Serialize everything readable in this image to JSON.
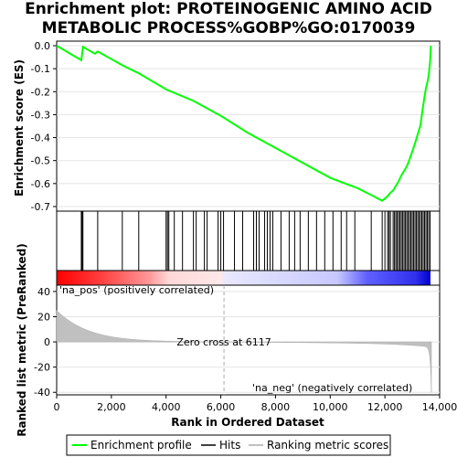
{
  "title_line1": "Enrichment plot: PROTEINOGENIC AMINO ACID",
  "title_line2": "METABOLIC PROCESS%GOBP%GO:0170039",
  "chart_data": {
    "type": "line",
    "es_panel": {
      "ylabel": "Enrichment score (ES)",
      "ylim": [
        -0.72,
        0.02
      ],
      "yticks": [
        "0.0",
        "-0.1",
        "-0.2",
        "-0.3",
        "-0.4",
        "-0.5",
        "-0.6",
        "-0.7"
      ],
      "ytick_values": [
        0.0,
        -0.1,
        -0.2,
        -0.3,
        -0.4,
        -0.5,
        -0.6,
        -0.7
      ],
      "series": [
        {
          "name": "Enrichment profile",
          "color": "#00ff00",
          "x": [
            0,
            900,
            930,
            960,
            1400,
            1500,
            2400,
            3000,
            4000,
            4100,
            5000,
            6000,
            7000,
            8000,
            9000,
            10000,
            11000,
            11500,
            11900,
            12000,
            12100,
            12200,
            12300,
            12400,
            12500,
            12600,
            12700,
            12800,
            12900,
            13000,
            13100,
            13200,
            13300,
            13350,
            13400,
            13450,
            13500,
            13550,
            13600,
            13650,
            13680
          ],
          "y": [
            0.0,
            -0.063,
            -0.035,
            -0.005,
            -0.035,
            -0.025,
            -0.085,
            -0.12,
            -0.19,
            -0.195,
            -0.24,
            -0.305,
            -0.38,
            -0.445,
            -0.51,
            -0.575,
            -0.62,
            -0.65,
            -0.675,
            -0.665,
            -0.655,
            -0.64,
            -0.63,
            -0.61,
            -0.59,
            -0.565,
            -0.545,
            -0.525,
            -0.495,
            -0.46,
            -0.425,
            -0.385,
            -0.345,
            -0.3,
            -0.26,
            -0.22,
            -0.185,
            -0.16,
            -0.13,
            -0.07,
            0.0
          ]
        }
      ]
    },
    "hits_panel": {
      "hit_positions": [
        900,
        930,
        960,
        1500,
        2400,
        3000,
        4000,
        4050,
        4100,
        4300,
        4600,
        5000,
        5100,
        5400,
        5500,
        5900,
        6000,
        6100,
        6500,
        6800,
        7200,
        7300,
        7400,
        7600,
        7700,
        7800,
        7900,
        8200,
        8500,
        8700,
        8900,
        9200,
        9500,
        9800,
        10100,
        10400,
        10600,
        10900,
        11500,
        11900,
        12000,
        12100,
        12150,
        12200,
        12300,
        12350,
        12400,
        12450,
        12500,
        12550,
        12600,
        12650,
        12700,
        12750,
        12800,
        12850,
        12900,
        12950,
        13000,
        13050,
        13100,
        13150,
        13200,
        13250,
        13300,
        13350,
        13400,
        13450,
        13500,
        13550,
        13600,
        13650
      ]
    },
    "metric_panel": {
      "ylabel": "Ranked list metric (PreRanked)",
      "ylim": [
        -42,
        45
      ],
      "yticks": [
        "40",
        "20",
        "0",
        "-20",
        "-40"
      ],
      "ytick_values": [
        40,
        20,
        0,
        -20,
        -40
      ],
      "label_pos": "'na_pos' (positively correlated)",
      "label_neg": "'na_neg' (negatively correlated)",
      "zero_cross_label": "Zero cross at 6117",
      "zero_cross": 6117
    },
    "xlabel": "Rank in Ordered Dataset",
    "xlim": [
      0,
      14000
    ],
    "xticks": [
      "0",
      "2,000",
      "4,000",
      "6,000",
      "8,000",
      "10,000",
      "12,000",
      "14,000"
    ],
    "xtick_values": [
      0,
      2000,
      4000,
      6000,
      8000,
      10000,
      12000,
      14000
    ],
    "n_genes": 13700,
    "legend": [
      "Enrichment profile",
      "Hits",
      "Ranking metric scores"
    ],
    "colors": {
      "profile": "#00ff00",
      "hits": "#000000",
      "metric_fill": "#c0c0c0",
      "pos_label": "#cc0000",
      "neg_label": "#0000cc"
    }
  }
}
